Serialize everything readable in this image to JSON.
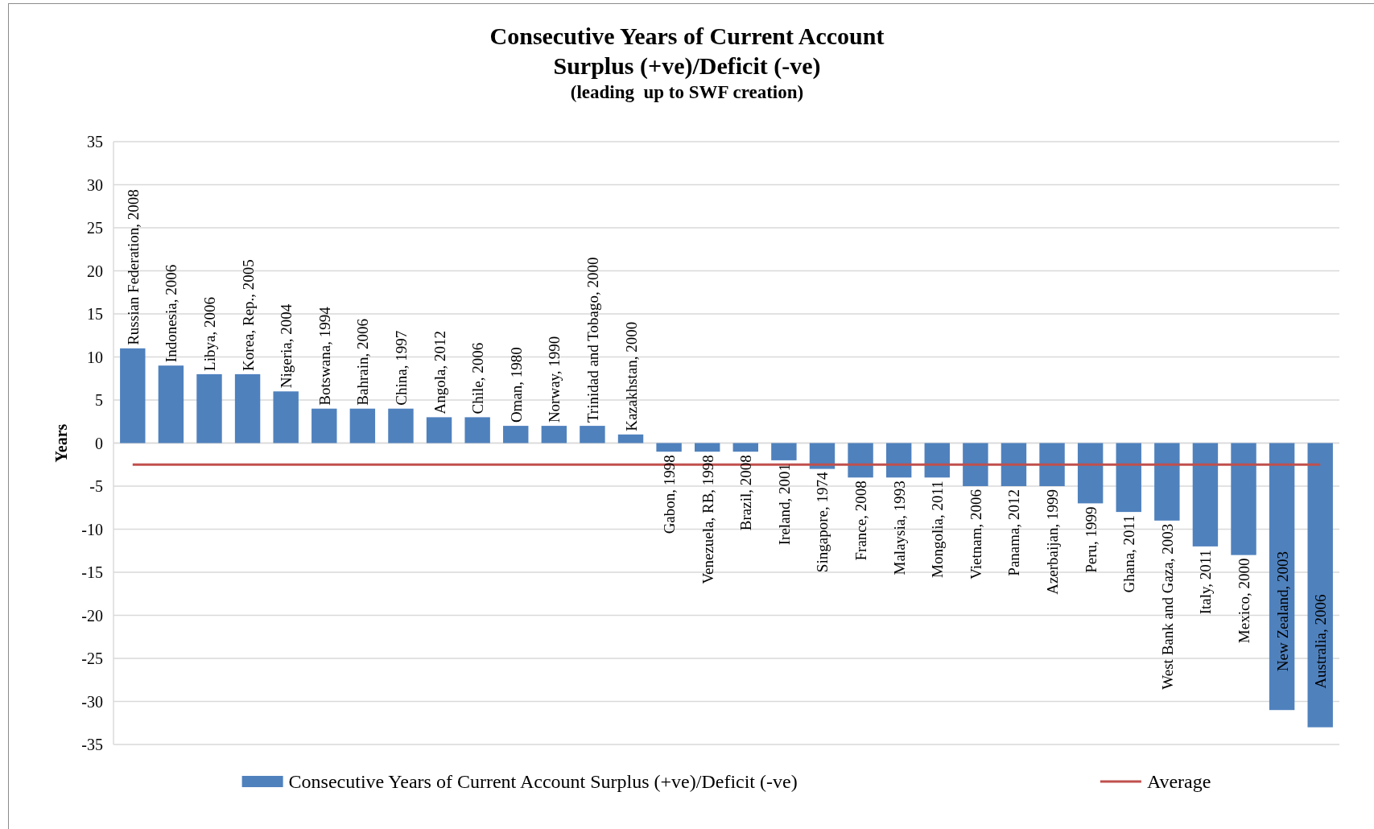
{
  "chart_data": {
    "type": "bar",
    "title": "Consecutive Years of Current Account Surplus (+ve)/Deficit (-ve)",
    "subtitle": "(leading  up to SWF creation)",
    "ylabel": "Years",
    "categories": [
      "Russian Federation, 2008",
      "Indonesia, 2006",
      "Libya, 2006",
      "Korea, Rep., 2005",
      "Nigeria, 2004",
      "Botswana, 1994",
      "Bahrain, 2006",
      "China, 1997",
      "Angola, 2012",
      "Chile, 2006",
      "Oman, 1980",
      "Norway, 1990",
      "Trinidad and Tobago, 2000",
      "Kazakhstan, 2000",
      "Gabon, 1998",
      "Venezuela, RB, 1998",
      "Brazil, 2008",
      "Ireland, 2001",
      "Singapore, 1974",
      "France, 2008",
      "Malaysia, 1993",
      "Mongolia, 2011",
      "Vietnam, 2006",
      "Panama, 2012",
      "Azerbaijan, 1999",
      "Peru, 1999",
      "Ghana, 2011",
      "West Bank and Gaza, 2003",
      "Italy, 2011",
      "Mexico, 2000",
      "New Zealand, 2003",
      "Australia, 2006"
    ],
    "series": [
      {
        "name": "Consecutive Years of Current Account Surplus (+ve)/Deficit (-ve)",
        "color": "#4f81bd",
        "values": [
          11,
          9,
          8,
          8,
          6,
          4,
          4,
          4,
          3,
          3,
          2,
          2,
          2,
          1,
          -1,
          -1,
          -1,
          -2,
          -3,
          -4,
          -4,
          -4,
          -5,
          -5,
          -5,
          -7,
          -8,
          -9,
          -12,
          -13,
          -31,
          -33
        ]
      },
      {
        "type": "line",
        "name": "Average",
        "color": "#c0504d",
        "values": [
          -2.5,
          -2.5,
          -2.5,
          -2.5,
          -2.5,
          -2.5,
          -2.5,
          -2.5,
          -2.5,
          -2.5,
          -2.5,
          -2.5,
          -2.5,
          -2.5,
          -2.5,
          -2.5,
          -2.5,
          -2.5,
          -2.5,
          -2.5,
          -2.5,
          -2.5,
          -2.5,
          -2.5,
          -2.5,
          -2.5,
          -2.5,
          -2.5,
          -2.5,
          -2.5,
          -2.5,
          -2.5
        ]
      }
    ],
    "ylim": [
      -35,
      35
    ],
    "yticks": [
      -35,
      -30,
      -25,
      -20,
      -15,
      -10,
      -5,
      0,
      5,
      10,
      15,
      20,
      25,
      30,
      35
    ],
    "grid": "y",
    "legend": "bottom"
  }
}
